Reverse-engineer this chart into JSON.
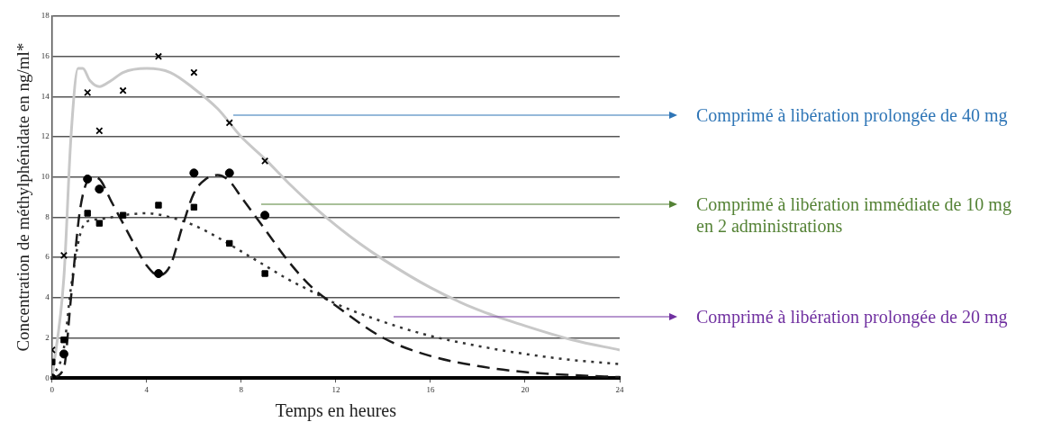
{
  "chart_data": {
    "type": "line",
    "xlabel": "Temps en heures",
    "ylabel": "Concentration de méthylphénidate en ng/ml*",
    "xlim": [
      0,
      24
    ],
    "xticks": [
      0,
      4,
      8,
      12,
      16,
      20,
      24
    ],
    "ylim": [
      0,
      18
    ],
    "yticks": [
      0,
      2,
      4,
      6,
      8,
      10,
      12,
      14,
      16,
      18
    ],
    "grid": "y",
    "legend": false,
    "series": [
      {
        "type": "line",
        "color": "#c8c8c8",
        "line_style": "solid",
        "marker": "none",
        "x": [
          0,
          0.5,
          0.8,
          1.1,
          1.3,
          1.6,
          2,
          2.5,
          3,
          4,
          5,
          6,
          7,
          8,
          9,
          10,
          11,
          12,
          13,
          14,
          16,
          18,
          20,
          22,
          24
        ],
        "values": [
          0,
          5,
          12,
          15.4,
          15.4,
          14.8,
          14.5,
          14.8,
          15.2,
          15.4,
          15.2,
          14.4,
          13.4,
          12,
          10.9,
          9.7,
          8.6,
          7.6,
          6.7,
          5.9,
          4.5,
          3.4,
          2.6,
          1.9,
          1.4
        ]
      },
      {
        "type": "line",
        "color": "#1a1a1a",
        "line_style": "dashed",
        "marker": "none",
        "x": [
          0,
          0.5,
          0.8,
          1.2,
          1.7,
          2,
          2.5,
          3,
          3.5,
          4,
          4.5,
          5,
          5.5,
          6,
          6.5,
          7,
          7.5,
          8,
          9,
          10,
          11,
          12,
          14,
          16,
          18,
          20,
          22,
          24
        ],
        "values": [
          0,
          0.5,
          4,
          8.5,
          10,
          9.9,
          8.8,
          7.7,
          6.6,
          5.6,
          5.1,
          5.6,
          7.5,
          9.2,
          9.9,
          10.1,
          9.8,
          9,
          7.4,
          5.8,
          4.5,
          3.6,
          2,
          1.1,
          0.6,
          0.3,
          0.15,
          0.05
        ]
      },
      {
        "type": "line",
        "color": "#333333",
        "line_style": "dotted",
        "marker": "none",
        "x": [
          0,
          0.5,
          0.8,
          1.2,
          1.5,
          2,
          3,
          4,
          5,
          6,
          7,
          8,
          9,
          10,
          11,
          12,
          14,
          16,
          18,
          20,
          22,
          24
        ],
        "values": [
          0,
          1.5,
          4.5,
          7.2,
          7.8,
          7.9,
          8.1,
          8.2,
          8,
          7.6,
          7,
          6.3,
          5.6,
          4.9,
          4.3,
          3.7,
          2.8,
          2.1,
          1.6,
          1.2,
          0.9,
          0.7
        ]
      },
      {
        "type": "scatter",
        "color": "#000000",
        "marker": "cross",
        "x": [
          0,
          0.5,
          1.5,
          2,
          3,
          4.5,
          6,
          7.5,
          9
        ],
        "values": [
          1.4,
          6.1,
          14.2,
          12.3,
          14.3,
          16,
          15.2,
          12.7,
          10.8
        ]
      },
      {
        "type": "scatter",
        "color": "#000000",
        "marker": "circle",
        "x": [
          0,
          0.5,
          1.5,
          2,
          4.5,
          6,
          7.5,
          9
        ],
        "values": [
          0,
          1.2,
          9.9,
          9.4,
          5.2,
          10.2,
          10.2,
          8.1
        ]
      },
      {
        "type": "scatter",
        "color": "#000000",
        "marker": "square",
        "x": [
          0,
          0.5,
          1.5,
          2,
          3,
          4.5,
          6,
          7.5,
          9
        ],
        "values": [
          0.8,
          1.9,
          8.2,
          7.7,
          8.1,
          8.6,
          8.5,
          6.7,
          5.2
        ]
      }
    ],
    "annotations": [
      "Comprimé à libération prolongée de 40 mg",
      "Comprimé à libération immédiate de 10 mg en 2 administrations",
      "Comprimé à libération prolongée de 20 mg"
    ]
  }
}
